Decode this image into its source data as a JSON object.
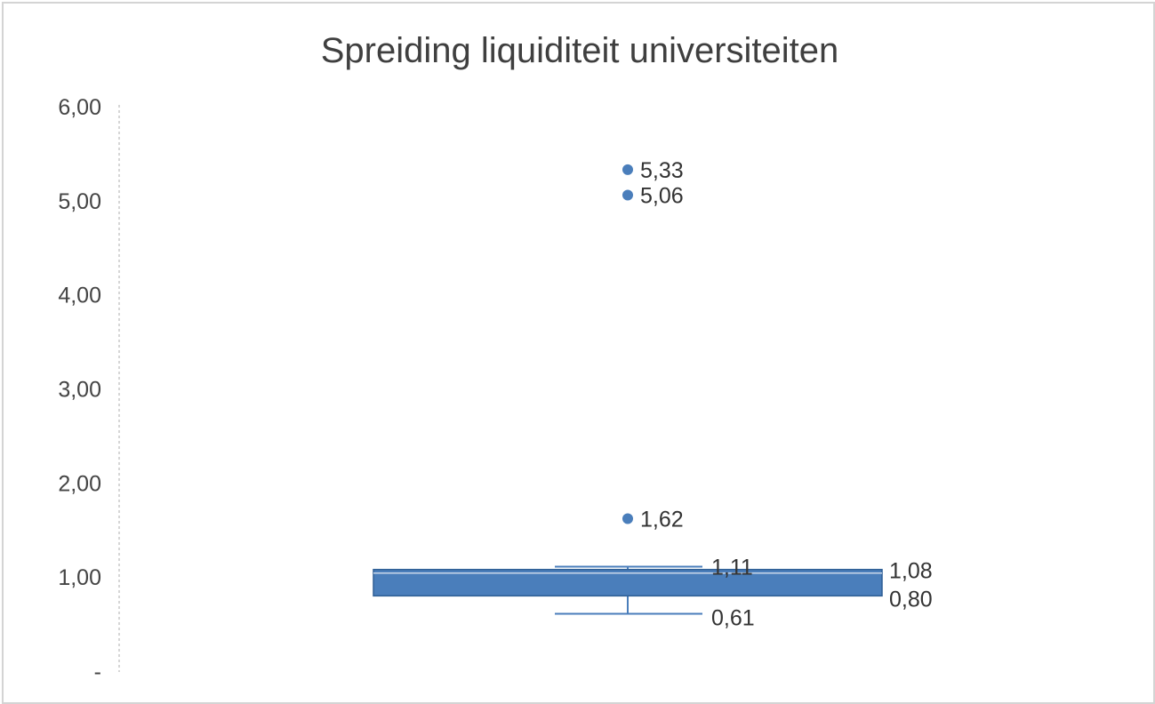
{
  "chart_data": {
    "type": "boxplot",
    "title": "Spreiding liquiditeit universiteiten",
    "xlabel": "",
    "ylabel": "",
    "ylim": [
      0,
      6
    ],
    "y_ticks": [
      {
        "value": 0,
        "label": "-"
      },
      {
        "value": 1,
        "label": "1,00"
      },
      {
        "value": 2,
        "label": "2,00"
      },
      {
        "value": 3,
        "label": "3,00"
      },
      {
        "value": 4,
        "label": "4,00"
      },
      {
        "value": 5,
        "label": "5,00"
      },
      {
        "value": 6,
        "label": "6,00"
      }
    ],
    "grid": false,
    "legend": "none",
    "color": "#4a7ebb",
    "box": {
      "whisker_low": 0.61,
      "q1": 0.8,
      "q3": 1.08,
      "whisker_high": 1.11,
      "labels": {
        "whisker_low": "0,61",
        "q1": "0,80",
        "q3": "1,08",
        "whisker_high": "1,11"
      }
    },
    "outliers": [
      {
        "value": 1.62,
        "label": "1,62"
      },
      {
        "value": 5.06,
        "label": "5,06"
      },
      {
        "value": 5.33,
        "label": "5,33"
      }
    ]
  }
}
